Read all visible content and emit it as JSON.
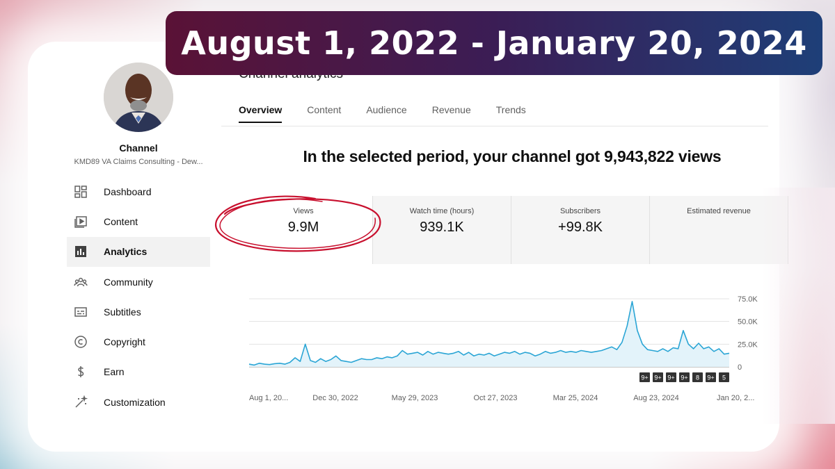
{
  "banner": {
    "title": "August 1, 2022 - January 20, 2024"
  },
  "page": {
    "title": "Channel analytics"
  },
  "channel": {
    "label": "Channel",
    "name": "KMD89 VA Claims Consulting - Dew..."
  },
  "sidebar": {
    "items": [
      {
        "label": "Dashboard",
        "icon": "dashboard-icon"
      },
      {
        "label": "Content",
        "icon": "content-icon"
      },
      {
        "label": "Analytics",
        "icon": "analytics-icon",
        "active": true
      },
      {
        "label": "Community",
        "icon": "community-icon"
      },
      {
        "label": "Subtitles",
        "icon": "subtitles-icon"
      },
      {
        "label": "Copyright",
        "icon": "copyright-icon"
      },
      {
        "label": "Earn",
        "icon": "earn-icon"
      },
      {
        "label": "Customization",
        "icon": "customization-icon"
      }
    ]
  },
  "tabs": [
    "Overview",
    "Content",
    "Audience",
    "Revenue",
    "Trends"
  ],
  "headline": "In the selected period, your channel got 9,943,822 views",
  "metrics": [
    {
      "label": "Views",
      "value": "9.9M"
    },
    {
      "label": "Watch time (hours)",
      "value": "939.1K"
    },
    {
      "label": "Subscribers",
      "value": "+99.8K"
    },
    {
      "label": "Estimated revenue",
      "value": ""
    }
  ],
  "colors": {
    "line": "#2aa5d5",
    "fill": "#e3f3fa",
    "circle": "#c8102e"
  },
  "chart_data": {
    "type": "line",
    "x_tick_labels": [
      "Aug 1, 20...",
      "Dec 30, 2022",
      "May 29, 2023",
      "Oct 27, 2023",
      "Mar 25, 2024",
      "Aug 23, 2024",
      "Jan 20, 2..."
    ],
    "y_tick_labels": [
      "75.0K",
      "50.0K",
      "25.0K",
      "0"
    ],
    "ylim": [
      0,
      75000
    ],
    "badges": [
      "9+",
      "9+",
      "9+",
      "9+",
      "8",
      "9+",
      "5"
    ],
    "values": [
      3000,
      2000,
      4000,
      3000,
      2500,
      3500,
      4000,
      3000,
      5000,
      10000,
      6000,
      25000,
      7000,
      5000,
      9000,
      6000,
      8000,
      12000,
      7000,
      6000,
      5000,
      7000,
      9000,
      8000,
      8000,
      10000,
      9000,
      11000,
      10000,
      12000,
      18000,
      14000,
      15000,
      16000,
      13000,
      17000,
      14000,
      16000,
      15000,
      14000,
      15000,
      17000,
      13000,
      16000,
      12000,
      14000,
      13000,
      15000,
      12000,
      14000,
      16000,
      15000,
      17000,
      14000,
      16000,
      15000,
      12000,
      14000,
      17000,
      15000,
      16000,
      18000,
      16000,
      17000,
      16000,
      18000,
      17000,
      16000,
      17000,
      18000,
      20000,
      22000,
      19000,
      27000,
      45000,
      72000,
      40000,
      25000,
      19000,
      18000,
      17000,
      20000,
      17000,
      21000,
      20000,
      40000,
      25000,
      20000,
      26000,
      20000,
      22000,
      17000,
      20000,
      14000,
      15000
    ]
  }
}
